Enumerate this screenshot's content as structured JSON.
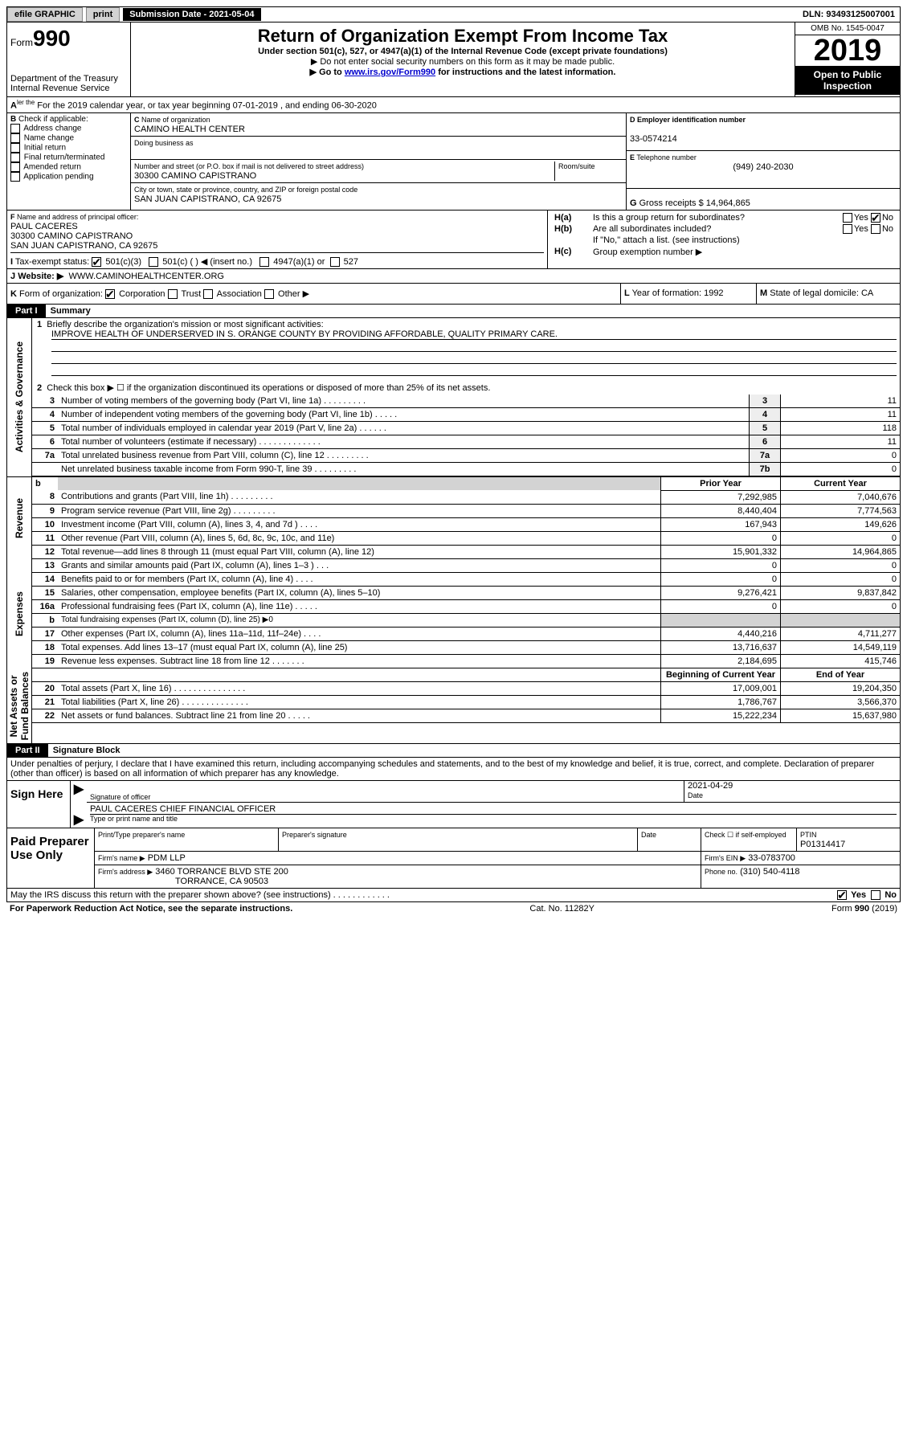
{
  "topbar": {
    "efile": "efile GRAPHIC",
    "print": "print",
    "submission": "Submission Date - 2021-05-04",
    "dln": "DLN: 93493125007001"
  },
  "hdr": {
    "form": "990",
    "formword": "Form",
    "title": "Return of Organization Exempt From Income Tax",
    "sub1": "Under section 501(c), 527, or 4947(a)(1) of the Internal Revenue Code (except private foundations)",
    "sub2": "▶ Do not enter social security numbers on this form as it may be made public.",
    "sub3a": "▶ Go to ",
    "sub3link": "www.irs.gov/Form990",
    "sub3b": " for instructions and the latest information.",
    "dept": "Department of the Treasury",
    "irs": "Internal Revenue Service",
    "omb": "OMB No. 1545-0047",
    "year": "2019",
    "open": "Open to Public",
    "inspection": "Inspection"
  },
  "A": {
    "text": "For the 2019 calendar year, or tax year beginning 07-01-2019    , and ending 06-30-2020"
  },
  "B": {
    "label": "Check if applicable:",
    "items": [
      "Address change",
      "Name change",
      "Initial return",
      "Final return/terminated",
      "Amended return",
      "Application pending"
    ]
  },
  "C": {
    "namelabel": "Name of organization",
    "name": "CAMINO HEALTH CENTER",
    "dba": "Doing business as",
    "addrlabel": "Number and street (or P.O. box if mail is not delivered to street address)",
    "room": "Room/suite",
    "addr": "30300 CAMINO CAPISTRANO",
    "citylabel": "City or town, state or province, country, and ZIP or foreign postal code",
    "city": "SAN JUAN CAPISTRANO, CA  92675"
  },
  "D": {
    "label": "Employer identification number",
    "val": "33-0574214"
  },
  "E": {
    "label": "Telephone number",
    "val": "(949) 240-2030"
  },
  "G": {
    "label": "Gross receipts $",
    "val": "14,964,865"
  },
  "F": {
    "label": "Name and address of principal officer:",
    "name": "PAUL CACERES",
    "l1": "30300 CAMINO CAPISTRANO",
    "l2": "SAN JUAN CAPISTRANO, CA  92675"
  },
  "H": {
    "a": "Is this a group return for subordinates?",
    "b": "Are all subordinates included?",
    "bnote": "If \"No,\" attach a list. (see instructions)",
    "c": "Group exemption number ▶",
    "hlabel_a": "H(a)",
    "hlabel_b": "H(b)",
    "hlabel_c": "H(c)"
  },
  "I": {
    "label": "Tax-exempt status:",
    "o1": "501(c)(3)",
    "o2": "501(c) (   ) ◀ (insert no.)",
    "o3": "4947(a)(1) or",
    "o4": "527"
  },
  "J": {
    "label": "Website: ▶",
    "val": "WWW.CAMINOHEALTHCENTER.ORG"
  },
  "K": {
    "label": "Form of organization:",
    "o1": "Corporation",
    "o2": "Trust",
    "o3": "Association",
    "o4": "Other ▶"
  },
  "L": {
    "label": "Year of formation:",
    "val": "1992"
  },
  "M": {
    "label": "State of legal domicile:",
    "val": "CA"
  },
  "part1": {
    "label": "Part I",
    "title": "Summary"
  },
  "summary": {
    "q1": "Briefly describe the organization's mission or most significant activities:",
    "mission": "IMPROVE HEALTH OF UNDERSERVED IN S. ORANGE COUNTY BY PROVIDING AFFORDABLE, QUALITY PRIMARY CARE.",
    "q2": "Check this box ▶ ☐  if the organization discontinued its operations or disposed of more than 25% of its net assets.",
    "rows_ag": [
      {
        "n": "3",
        "d": "Number of voting members of the governing body (Part VI, line 1a)  .   .   .   .   .   .   .   .   .",
        "box": "3",
        "v": "11"
      },
      {
        "n": "4",
        "d": "Number of independent voting members of the governing body (Part VI, line 1b)   .    .    .    .    .",
        "box": "4",
        "v": "11"
      },
      {
        "n": "5",
        "d": "Total number of individuals employed in calendar year 2019 (Part V, line 2a)   .    .    .    .    .    .",
        "box": "5",
        "v": "118"
      },
      {
        "n": "6",
        "d": "Total number of volunteers (estimate if necessary)   .    .    .    .    .    .    .    .    .    .    .    .    .",
        "box": "6",
        "v": "11"
      },
      {
        "n": "7a",
        "d": "Total unrelated business revenue from Part VIII, column (C), line 12  .   .   .   .   .   .   .   .   .",
        "box": "7a",
        "v": "0"
      },
      {
        "n": "",
        "d": "Net unrelated business taxable income from Form 990-T, line 39   .    .    .    .    .    .    .    .    .",
        "box": "7b",
        "v": "0",
        "noleft": true
      }
    ],
    "col_py": "Prior Year",
    "col_cy": "Current Year",
    "rows_rev": [
      {
        "n": "8",
        "d": "Contributions and grants (Part VIII, line 1h)   .    .    .    .    .    .    .    .    .",
        "py": "7,292,985",
        "cy": "7,040,676"
      },
      {
        "n": "9",
        "d": "Program service revenue (Part VIII, line 2g)   .    .    .    .    .    .    .    .    .",
        "py": "8,440,404",
        "cy": "7,774,563"
      },
      {
        "n": "10",
        "d": "Investment income (Part VIII, column (A), lines 3, 4, and 7d )   .    .    .    .",
        "py": "167,943",
        "cy": "149,626"
      },
      {
        "n": "11",
        "d": "Other revenue (Part VIII, column (A), lines 5, 6d, 8c, 9c, 10c, and 11e)",
        "py": "0",
        "cy": "0"
      },
      {
        "n": "12",
        "d": "Total revenue—add lines 8 through 11 (must equal Part VIII, column (A), line 12)",
        "py": "15,901,332",
        "cy": "14,964,865"
      }
    ],
    "rows_exp": [
      {
        "n": "13",
        "d": "Grants and similar amounts paid (Part IX, column (A), lines 1–3 )   .    .    .",
        "py": "0",
        "cy": "0"
      },
      {
        "n": "14",
        "d": "Benefits paid to or for members (Part IX, column (A), line 4)  .   .   .   .",
        "py": "0",
        "cy": "0"
      },
      {
        "n": "15",
        "d": "Salaries, other compensation, employee benefits (Part IX, column (A), lines 5–10)",
        "py": "9,276,421",
        "cy": "9,837,842"
      },
      {
        "n": "16a",
        "d": "Professional fundraising fees (Part IX, column (A), line 11e)   .    .    .    .    .",
        "py": "0",
        "cy": "0"
      },
      {
        "n": "b",
        "d": "Total fundraising expenses (Part IX, column (D), line 25) ▶0",
        "py": "",
        "cy": "",
        "shade": true,
        "small": true
      },
      {
        "n": "17",
        "d": "Other expenses (Part IX, column (A), lines 11a–11d, 11f–24e)   .    .    .    .",
        "py": "4,440,216",
        "cy": "4,711,277"
      },
      {
        "n": "18",
        "d": "Total expenses. Add lines 13–17 (must equal Part IX, column (A), line 25)",
        "py": "13,716,637",
        "cy": "14,549,119"
      },
      {
        "n": "19",
        "d": "Revenue less expenses. Subtract line 18 from line 12  .   .   .   .   .   .   .",
        "py": "2,184,695",
        "cy": "415,746"
      }
    ],
    "col_boy": "Beginning of Current Year",
    "col_eoy": "End of Year",
    "rows_na": [
      {
        "n": "20",
        "d": "Total assets (Part X, line 16)  .   .   .   .   .   .   .   .   .   .   .   .   .   .   .",
        "py": "17,009,001",
        "cy": "19,204,350"
      },
      {
        "n": "21",
        "d": "Total liabilities (Part X, line 26)  .   .   .   .   .   .   .   .   .   .   .   .   .   .",
        "py": "1,786,767",
        "cy": "3,566,370"
      },
      {
        "n": "22",
        "d": "Net assets or fund balances. Subtract line 21 from line 20  .   .   .   .   .",
        "py": "15,222,234",
        "cy": "15,637,980"
      }
    ],
    "side_ag": "Activities & Governance",
    "side_rev": "Revenue",
    "side_exp": "Expenses",
    "side_na": "Net Assets or\nFund Balances"
  },
  "part2": {
    "label": "Part II",
    "title": "Signature Block",
    "decl": "Under penalties of perjury, I declare that I have examined this return, including accompanying schedules and statements, and to the best of my knowledge and belief, it is true, correct, and complete. Declaration of preparer (other than officer) is based on all information of which preparer has any knowledge."
  },
  "sign": {
    "here": "Sign Here",
    "sigoff": "Signature of officer",
    "date": "2021-04-29",
    "datelabel": "Date",
    "name": "PAUL CACERES  CHIEF FINANCIAL OFFICER",
    "typelabel": "Type or print name and title"
  },
  "paid": {
    "label": "Paid Preparer Use Only",
    "h1": "Print/Type preparer's name",
    "h2": "Preparer's signature",
    "h3": "Date",
    "h4": "Check ☐ if self-employed",
    "h5": "PTIN",
    "ptin": "P01314417",
    "firm": "Firm's name    ▶",
    "firmval": "PDM LLP",
    "ein": "Firm's EIN ▶",
    "einval": "33-0783700",
    "addr": "Firm's address ▶",
    "addrval": "3460 TORRANCE BLVD STE 200",
    "addrval2": "TORRANCE, CA  90503",
    "phone": "Phone no.",
    "phoneval": "(310) 540-4118"
  },
  "discuss": {
    "q": "May the IRS discuss this return with the preparer shown above? (see instructions)   .    .    .    .    .    .    .    .    .    .    .    .",
    "yes": "Yes",
    "no": "No"
  },
  "footer": {
    "l": "For Paperwork Reduction Act Notice, see the separate instructions.",
    "m": "Cat. No. 11282Y",
    "r": "Form 990 (2019)",
    "rb": "990"
  }
}
